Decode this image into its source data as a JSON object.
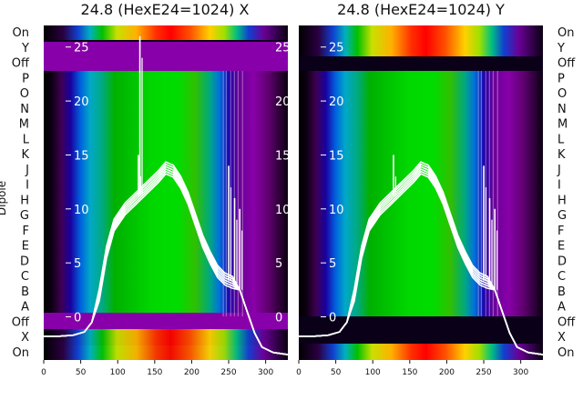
{
  "chart_data": [
    {
      "type": "heatmap",
      "title": "24.8 (HexE24=1024) X",
      "ylabel": "Dipole",
      "row_labels": [
        "On",
        "Y",
        "Off",
        "P",
        "O",
        "N",
        "M",
        "L",
        "K",
        "J",
        "I",
        "H",
        "G",
        "F",
        "E",
        "D",
        "C",
        "B",
        "A",
        "Off",
        "X",
        "On"
      ],
      "x_ticks": [
        0,
        50,
        100,
        150,
        200,
        250,
        300
      ],
      "xlim": [
        0,
        330
      ],
      "y_ticks": [
        0,
        5,
        10,
        15,
        20,
        25
      ],
      "ylim": [
        -4,
        27
      ],
      "colormap": "nipy_spectral",
      "overlay_series": {
        "name": "",
        "x": [
          0,
          20,
          40,
          55,
          65,
          75,
          85,
          95,
          110,
          125,
          140,
          155,
          165,
          175,
          185,
          195,
          205,
          215,
          225,
          235,
          245,
          255,
          265,
          275,
          285,
          295,
          310,
          330
        ],
        "y": [
          -1.8,
          -1.8,
          -1.7,
          -1.4,
          -0.5,
          2,
          6,
          8.5,
          10,
          11,
          12,
          13,
          13.8,
          13.5,
          12.5,
          11,
          9,
          7,
          5.5,
          4.2,
          3.5,
          3.2,
          2.5,
          0.5,
          -1.5,
          -2.8,
          -3.3,
          -3.5
        ]
      },
      "spikes": [
        {
          "x": 130,
          "y": 26
        },
        {
          "x": 128,
          "y": 15
        },
        {
          "x": 250,
          "y": 14
        },
        {
          "x": 258,
          "y": 11
        },
        {
          "x": 265,
          "y": 10
        }
      ]
    },
    {
      "type": "heatmap",
      "title": "24.8 (HexE24=1024) Y",
      "ylabel": "",
      "row_labels": [
        "On",
        "Y",
        "Off",
        "P",
        "O",
        "N",
        "M",
        "L",
        "K",
        "J",
        "I",
        "H",
        "G",
        "F",
        "E",
        "D",
        "C",
        "B",
        "A",
        "Off",
        "X",
        "On"
      ],
      "x_ticks": [
        0,
        50,
        100,
        150,
        200,
        250,
        300
      ],
      "xlim": [
        0,
        330
      ],
      "y_ticks": [
        0,
        5,
        10,
        15,
        20,
        25
      ],
      "ylim": [
        -4,
        27
      ],
      "colormap": "nipy_spectral",
      "overlay_series": {
        "name": "",
        "x": [
          0,
          20,
          40,
          55,
          65,
          75,
          85,
          95,
          110,
          125,
          140,
          155,
          165,
          175,
          185,
          195,
          205,
          215,
          225,
          235,
          245,
          255,
          265,
          275,
          285,
          295,
          310,
          330
        ],
        "y": [
          -1.8,
          -1.8,
          -1.7,
          -1.4,
          -0.5,
          2,
          6,
          8.5,
          10,
          11,
          12,
          13,
          13.8,
          13.5,
          12.5,
          11,
          9,
          7,
          5.5,
          4.2,
          3.5,
          3.2,
          2.5,
          0.5,
          -1.5,
          -2.8,
          -3.3,
          -3.5
        ]
      },
      "spikes": [
        {
          "x": 128,
          "y": 15
        },
        {
          "x": 250,
          "y": 14
        },
        {
          "x": 258,
          "y": 11
        },
        {
          "x": 265,
          "y": 10
        }
      ]
    }
  ]
}
